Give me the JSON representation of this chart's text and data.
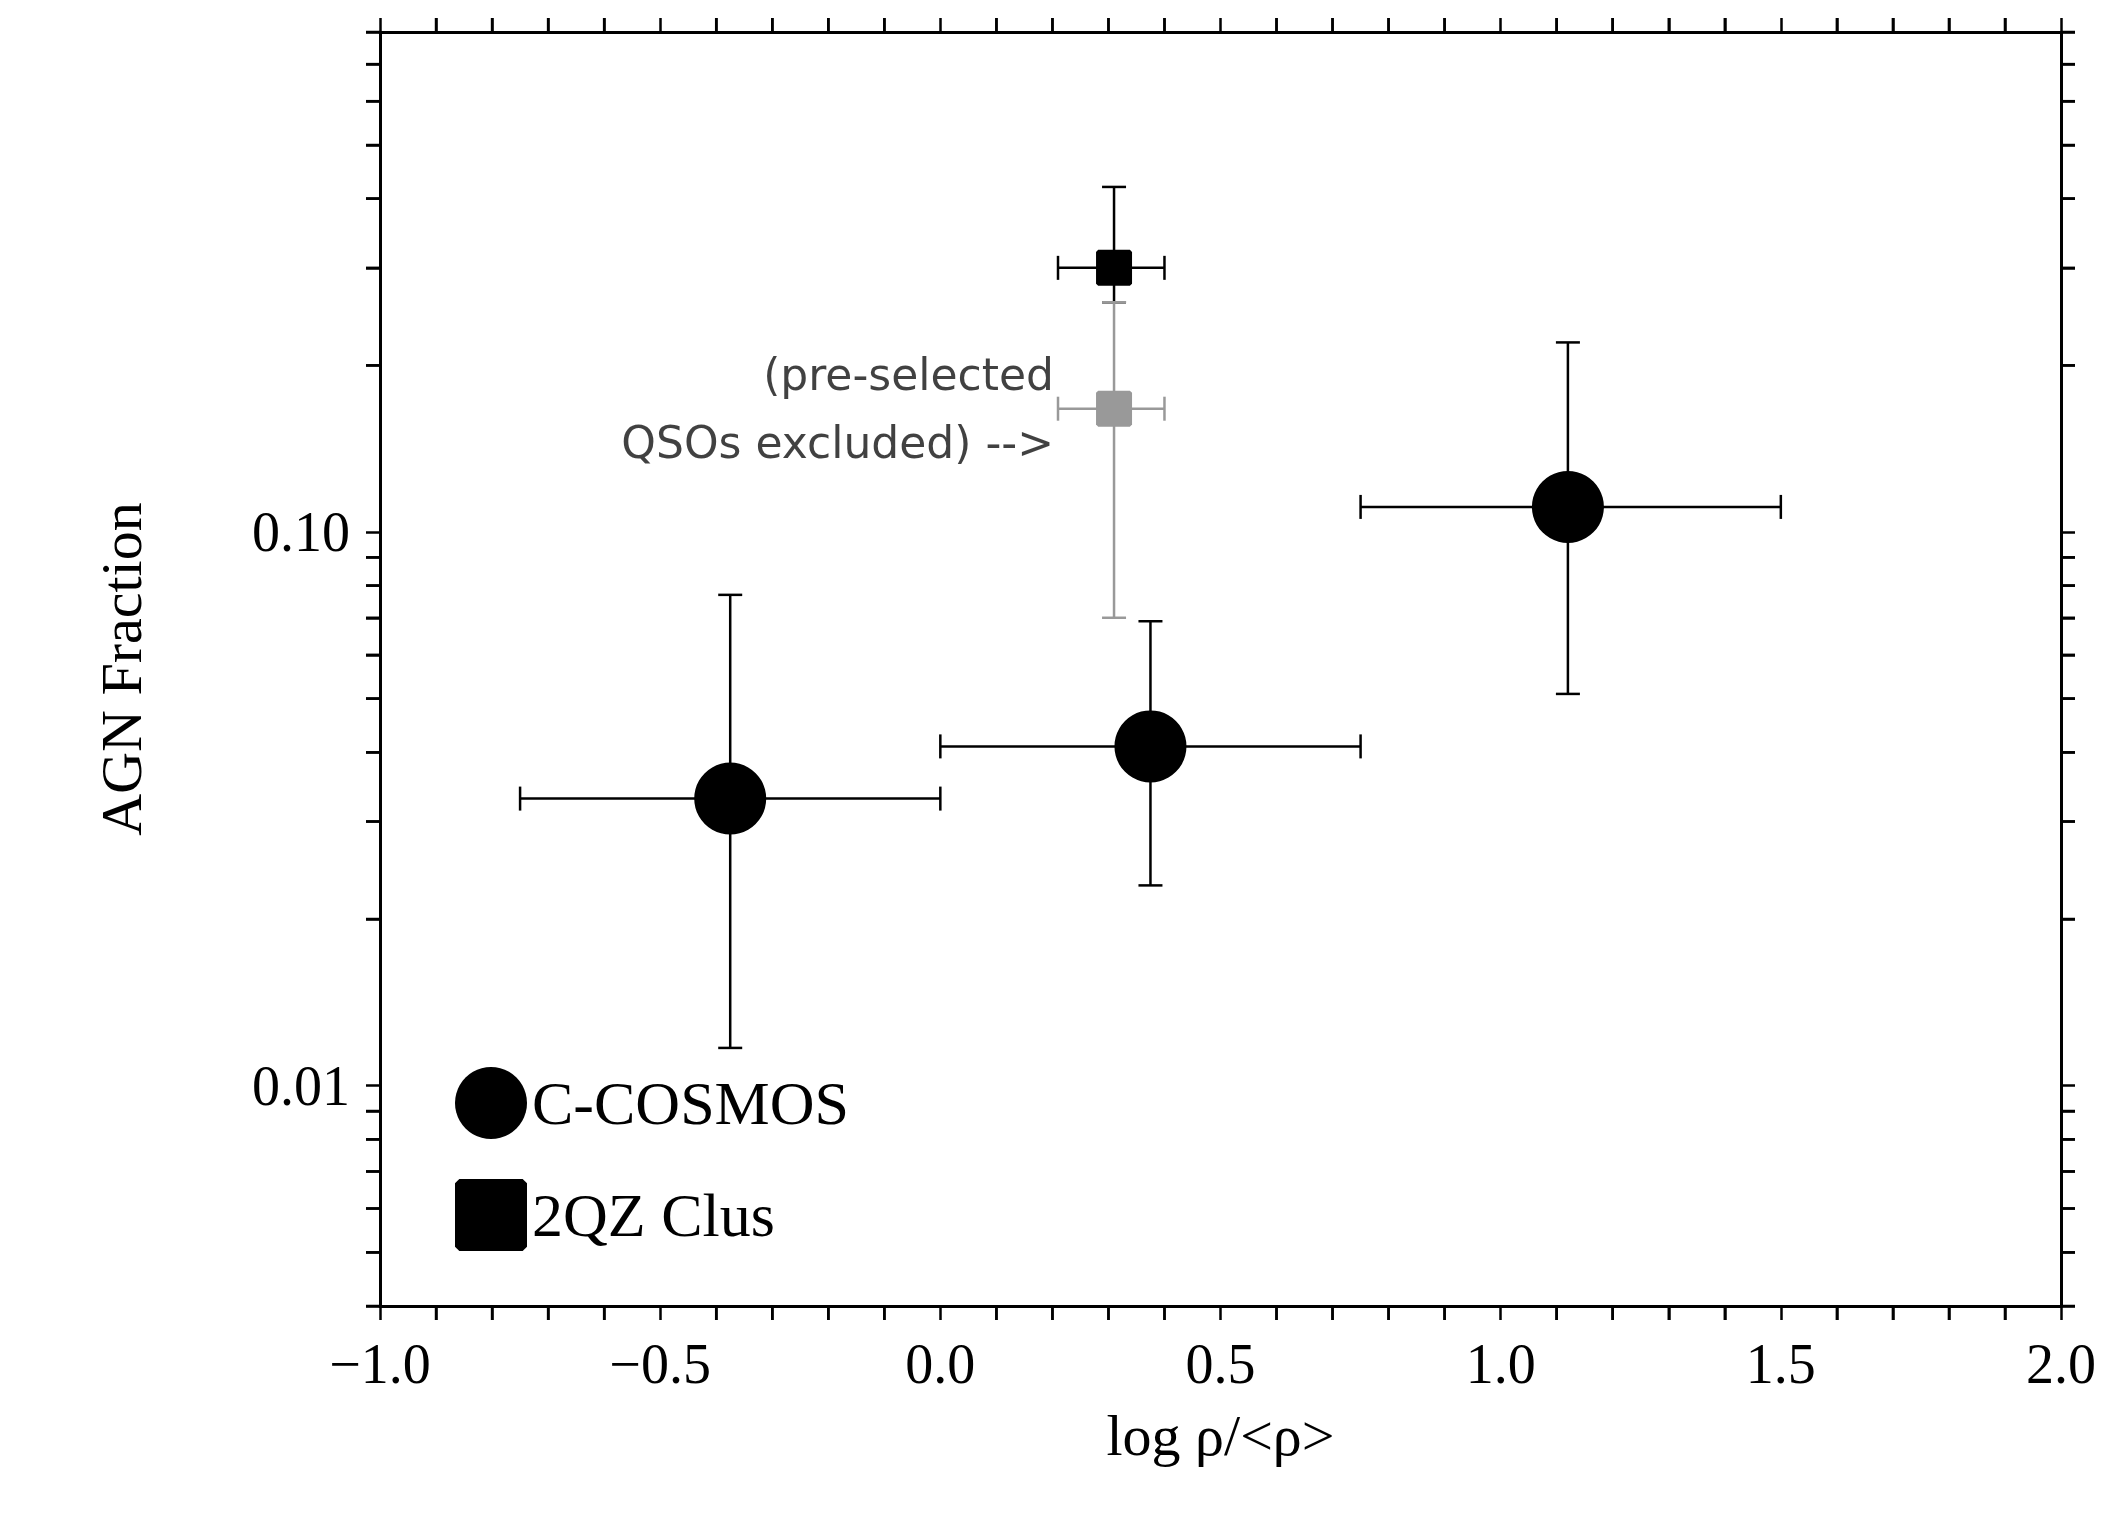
{
  "chart_data": {
    "type": "scatter",
    "xlabel": "log ρ/<ρ>",
    "ylabel": "AGN Fraction",
    "log": "y",
    "xlim": [
      -1,
      2
    ],
    "ylim": [
      0.004,
      0.8
    ],
    "xticks": [
      {
        "value": -1,
        "label": "−1.0"
      },
      {
        "value": -0.9,
        "label": null
      },
      {
        "value": -0.8,
        "label": null
      },
      {
        "value": -0.7,
        "label": null
      },
      {
        "value": -0.6,
        "label": null
      },
      {
        "value": -0.5,
        "label": "−0.5"
      },
      {
        "value": -0.4,
        "label": null
      },
      {
        "value": -0.3,
        "label": null
      },
      {
        "value": -0.2,
        "label": null
      },
      {
        "value": -0.1,
        "label": null
      },
      {
        "value": 0,
        "label": "0.0"
      },
      {
        "value": 0.1,
        "label": null
      },
      {
        "value": 0.2,
        "label": null
      },
      {
        "value": 0.3,
        "label": null
      },
      {
        "value": 0.4,
        "label": null
      },
      {
        "value": 0.5,
        "label": "0.5"
      },
      {
        "value": 0.6,
        "label": null
      },
      {
        "value": 0.7,
        "label": null
      },
      {
        "value": 0.8,
        "label": null
      },
      {
        "value": 0.9,
        "label": null
      },
      {
        "value": 1,
        "label": "1.0"
      },
      {
        "value": 1.1,
        "label": null
      },
      {
        "value": 1.2,
        "label": null
      },
      {
        "value": 1.3,
        "label": null
      },
      {
        "value": 1.4,
        "label": null
      },
      {
        "value": 1.5,
        "label": "1.5"
      },
      {
        "value": 1.6,
        "label": null
      },
      {
        "value": 1.7,
        "label": null
      },
      {
        "value": 1.8,
        "label": null
      },
      {
        "value": 1.9,
        "label": null
      },
      {
        "value": 2,
        "label": "2.0"
      }
    ],
    "yticks": [
      {
        "value": 0.004,
        "label": null
      },
      {
        "value": 0.005,
        "label": null
      },
      {
        "value": 0.006,
        "label": null
      },
      {
        "value": 0.007,
        "label": null
      },
      {
        "value": 0.008,
        "label": null
      },
      {
        "value": 0.009,
        "label": null
      },
      0.01,
      {
        "value": 0.02,
        "label": null
      },
      {
        "value": 0.03,
        "label": null
      },
      {
        "value": 0.04,
        "label": null
      },
      {
        "value": 0.05,
        "label": null
      },
      {
        "value": 0.06,
        "label": null
      },
      {
        "value": 0.07,
        "label": null
      },
      {
        "value": 0.08,
        "label": null
      },
      {
        "value": 0.09,
        "label": null
      },
      {
        "value": 0.1,
        "label": "0.10"
      },
      {
        "value": 0.2,
        "label": null
      },
      {
        "value": 0.3,
        "label": null
      },
      {
        "value": 0.4,
        "label": null
      },
      {
        "value": 0.5,
        "label": null
      },
      {
        "value": 0.6,
        "label": null
      },
      {
        "value": 0.7,
        "label": null
      },
      {
        "value": 0.8,
        "label": null
      }
    ],
    "grid": false,
    "legend": "bottom left",
    "series": [
      {
        "name": "C-COSMOS",
        "color": "#000000",
        "marker": "circle",
        "x": [
          -0.375,
          0.375,
          1.12
        ],
        "values": [
          0.033,
          0.041,
          0.111
        ],
        "errors": [
          [
            0.0117,
            0.077
          ],
          [
            0.023,
            0.069
          ],
          [
            0.051,
            0.22
          ]
        ],
        "xerrors": [
          [
            -0.75,
            0
          ],
          [
            0,
            0.75
          ],
          [
            0.75,
            1.5
          ]
        ]
      },
      {
        "name": "2QZ Clus",
        "color": "#000000",
        "marker": "square",
        "x": [
          0.31
        ],
        "values": [
          0.3
        ],
        "errors": [
          [
            0.26,
            0.42
          ]
        ],
        "xerrors": [
          [
            0.21,
            0.4
          ]
        ]
      },
      {
        "color": "#999999",
        "marker": "square",
        "x": [
          0.31
        ],
        "values": [
          0.167
        ],
        "errors": [
          [
            0.07,
            0.26
          ]
        ],
        "xerrors": [
          [
            0.21,
            0.4
          ]
        ]
      }
    ],
    "annotations": [
      {
        "text": "(pre-selected\nQSOs excluded) -->",
        "x": 0.31,
        "y": 0.167
      }
    ]
  }
}
